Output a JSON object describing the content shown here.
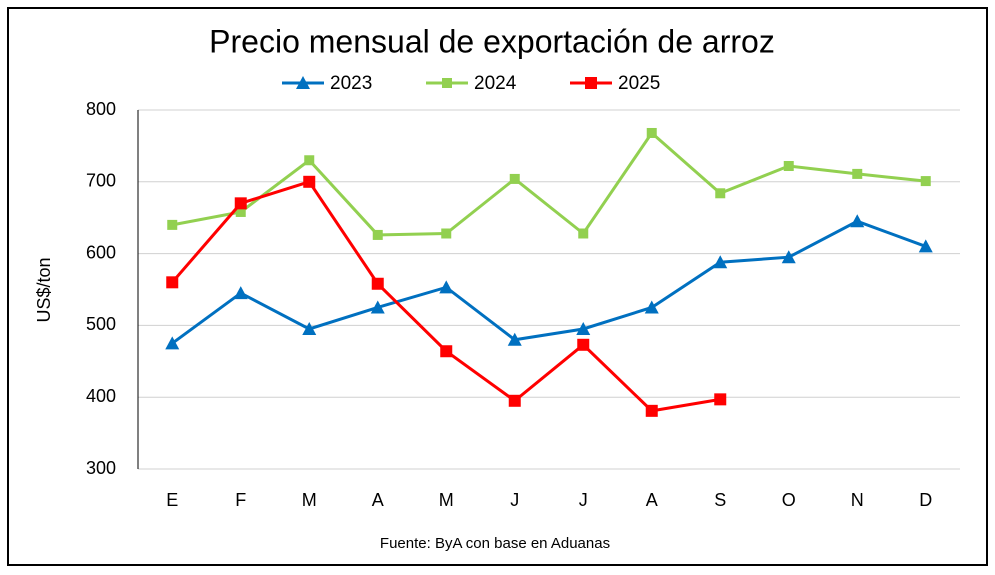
{
  "chart_data": {
    "type": "line",
    "title": "Precio mensual de exportación de arroz",
    "ylabel": "US$/ton",
    "source": "Fuente: ByA con base en Aduanas",
    "categories": [
      "E",
      "F",
      "M",
      "A",
      "M",
      "J",
      "J",
      "A",
      "S",
      "O",
      "N",
      "D"
    ],
    "series": [
      {
        "name": "2023",
        "color": "#0070c0",
        "marker": "triangle",
        "values": [
          475,
          545,
          495,
          525,
          553,
          480,
          495,
          525,
          588,
          595,
          645,
          610
        ]
      },
      {
        "name": "2024",
        "color": "#92d050",
        "marker": "square-small",
        "values": [
          640,
          658,
          730,
          626,
          628,
          704,
          628,
          768,
          684,
          722,
          711,
          701
        ]
      },
      {
        "name": "2025",
        "color": "#ff0000",
        "marker": "square",
        "values": [
          560,
          670,
          700,
          558,
          464,
          395,
          473,
          381,
          397,
          null,
          null,
          null
        ]
      }
    ],
    "ylim": [
      300,
      800
    ],
    "yticks": [
      300,
      400,
      500,
      600,
      700,
      800
    ],
    "grid": true
  }
}
